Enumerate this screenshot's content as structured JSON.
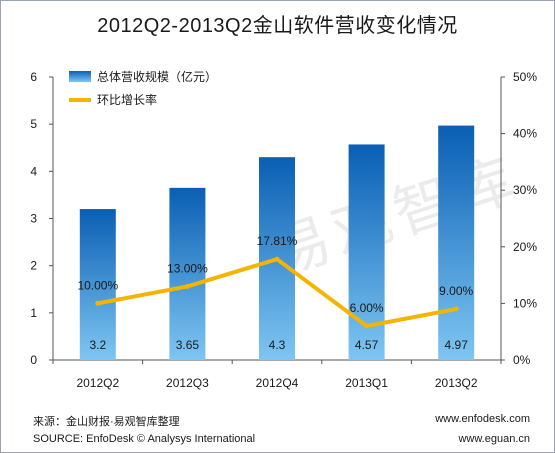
{
  "title": "2012Q2-2013Q2金山软件营收变化情况",
  "watermark": "易观智库",
  "footer": {
    "source_cn": "来源：金山财报·易观智库整理",
    "source_en": "SOURCE: EnfoDesk © Analysys International",
    "url1": "www.enfodesk.com",
    "url2": "www.eguan.cn"
  },
  "colors": {
    "bar_top": "#0a5fb4",
    "bar_bottom": "#7ec6f2",
    "line": "#f5b400"
  },
  "chart_data": {
    "type": "bar",
    "categories": [
      "2012Q2",
      "2012Q3",
      "2012Q4",
      "2013Q1",
      "2013Q2"
    ],
    "series": [
      {
        "name": "总体营收规模（亿元）",
        "type": "bar",
        "axis": "left",
        "values": [
          3.2,
          3.65,
          4.3,
          4.57,
          4.97
        ],
        "labels": [
          "3.2",
          "3.65",
          "4.3",
          "4.57",
          "4.97"
        ]
      },
      {
        "name": "环比增长率",
        "type": "line",
        "axis": "right",
        "values": [
          10.0,
          13.0,
          17.81,
          6.0,
          9.0
        ],
        "labels": [
          "10.00%",
          "13.00%",
          "17.81%",
          "6.00%",
          "9.00%"
        ]
      }
    ],
    "y_left": {
      "ylim": [
        0,
        6
      ],
      "ticks": [
        "0",
        "1",
        "2",
        "3",
        "4",
        "5",
        "6"
      ]
    },
    "y_right": {
      "ylim": [
        0,
        50
      ],
      "ticks": [
        "0%",
        "10%",
        "20%",
        "30%",
        "40%",
        "50%"
      ]
    },
    "legend": "top-left",
    "grid": false
  }
}
